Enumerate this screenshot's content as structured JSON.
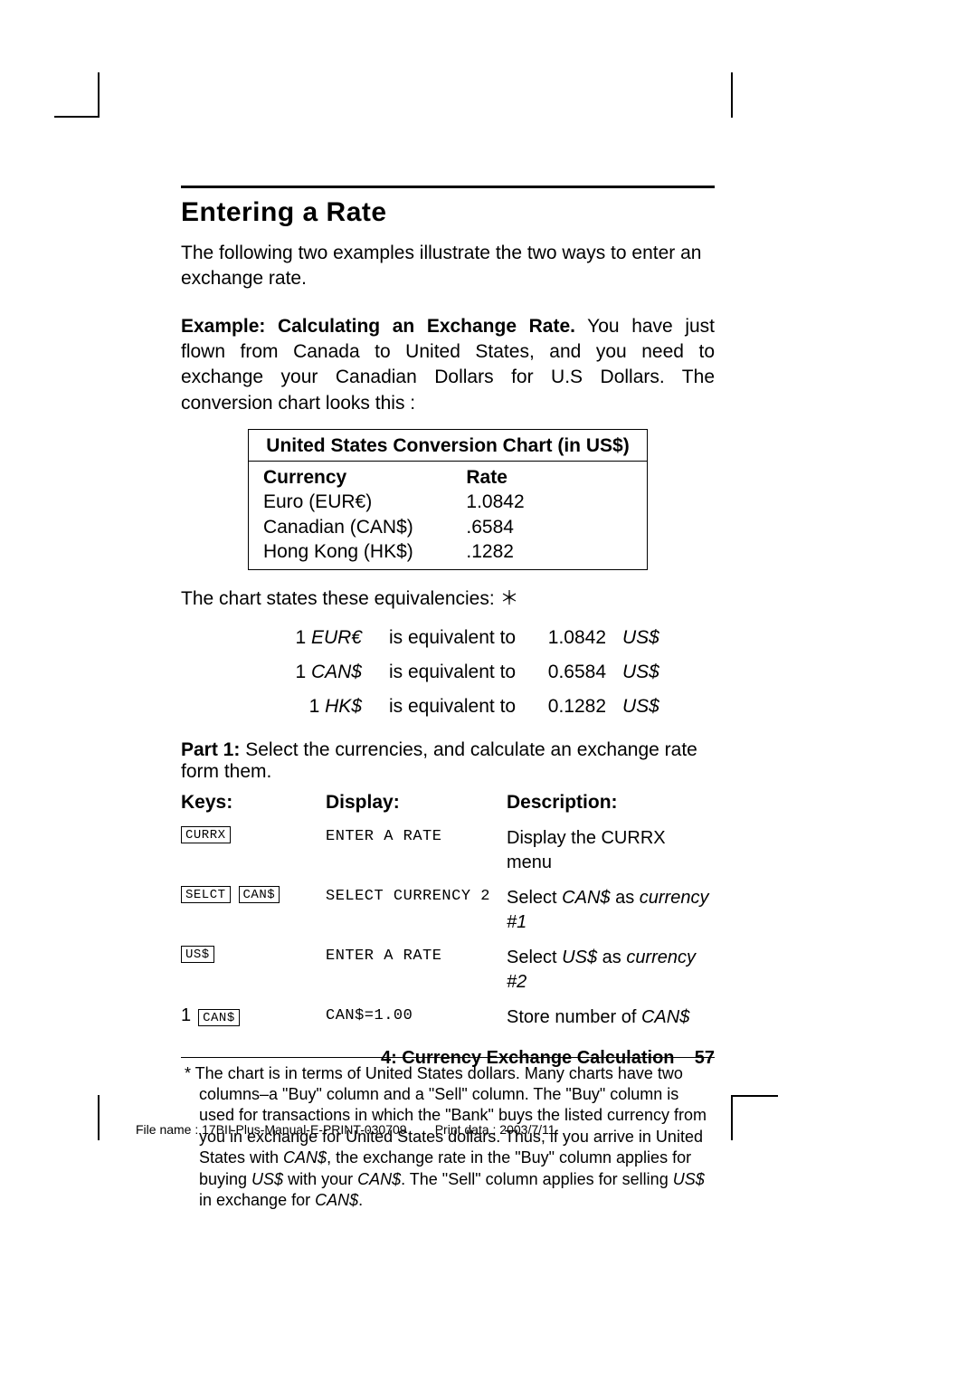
{
  "heading": "Entering a Rate",
  "intro": "The following two examples illustrate the two ways to enter an exchange rate.",
  "example_label": "Example: Calculating an Exchange Rate.",
  "example_text": " You have just flown from Canada to United States, and you need to exchange your Canadian Dollars for U.S Dollars. The conversion chart looks this :",
  "conv_table": {
    "title": "United States Conversion Chart (in US$)",
    "header_currency": "Currency",
    "header_rate": "Rate",
    "rows": [
      {
        "currency": "Euro (EUR€)",
        "rate": "1.0842"
      },
      {
        "currency": "Canadian (CAN$)",
        "rate": ".6584"
      },
      {
        "currency": "Hong Kong (HK$)",
        "rate": ".1282"
      }
    ]
  },
  "equiv_intro": "The chart states these equivalencies: ＊",
  "equiv_rows": [
    {
      "qty": "1",
      "cur": "EUR€",
      "mid": "is equivalent to",
      "val": "1.0842",
      "to": "US$"
    },
    {
      "qty": "1",
      "cur": "CAN$",
      "mid": "is equivalent to",
      "val": "0.6584",
      "to": "US$"
    },
    {
      "qty": "1",
      "cur": "HK$",
      "mid": "is equivalent to",
      "val": "0.1282",
      "to": "US$"
    }
  ],
  "part1_label": "Part 1:",
  "part1_text": " Select the currencies, and calculate an exchange rate form them.",
  "kdd_headers": {
    "keys": "Keys:",
    "display": "Display:",
    "description": "Description:"
  },
  "kdd_rows": [
    {
      "keys": [
        {
          "type": "btn",
          "label": "CURRX"
        }
      ],
      "display": "ENTER A RATE",
      "desc_parts": [
        {
          "t": "Display the CURRX menu",
          "i": false
        }
      ]
    },
    {
      "keys": [
        {
          "type": "btn",
          "label": "SELCT"
        },
        {
          "type": "btn",
          "label": "CAN$"
        }
      ],
      "display": "SELECT CURRENCY 2",
      "desc_parts": [
        {
          "t": "Select ",
          "i": false
        },
        {
          "t": "CAN$",
          "i": true
        },
        {
          "t": " as ",
          "i": false
        },
        {
          "t": "currency #1",
          "i": true
        }
      ]
    },
    {
      "keys": [
        {
          "type": "btn",
          "label": "US$"
        }
      ],
      "display": "ENTER A RATE",
      "desc_parts": [
        {
          "t": "Select ",
          "i": false
        },
        {
          "t": "US$",
          "i": true
        },
        {
          "t": " as ",
          "i": false
        },
        {
          "t": "currency #2",
          "i": true
        }
      ]
    },
    {
      "keys": [
        {
          "type": "num",
          "label": "1"
        },
        {
          "type": "btn",
          "label": "CAN$"
        }
      ],
      "display": "CAN$=1.00",
      "desc_parts": [
        {
          "t": "Store number of ",
          "i": false
        },
        {
          "t": "CAN$",
          "i": true
        }
      ]
    }
  ],
  "footnote": "* The chart is in terms of United States dollars. Many charts have two columns–a \"Buy\" column and a \"Sell\" column. The \"Buy\" column is used for transactions in which the \"Bank\" buys the listed currency from you in exchange for United States dollars. Thus, if you arrive in United States with ",
  "footnote_mid": ", the exchange rate in the \"Buy\" column applies for buying ",
  "footnote_mid2": " with your ",
  "footnote_mid3": ". The \"Sell\" column applies for selling ",
  "footnote_mid4": " in exchange for ",
  "footnote_can": "CAN$",
  "footnote_us": "US$",
  "footer_chapter": "4: Currency Exchange Calculation",
  "footer_page": "57",
  "printline_file": "File name : 17BII-Plus-Manual-E-PRINT-030709",
  "printline_date": "Print data : 2003/7/11"
}
